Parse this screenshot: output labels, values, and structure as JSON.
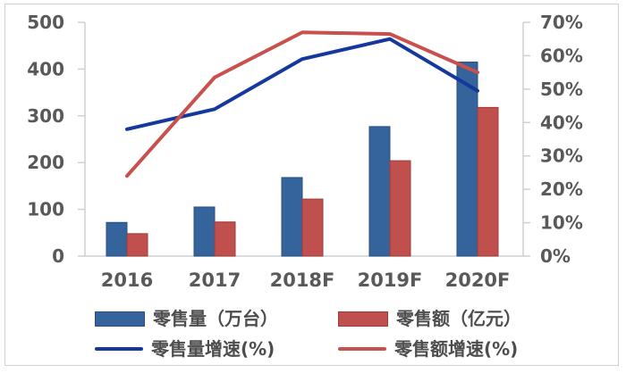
{
  "chart_data": {
    "type": "combo-bar-line",
    "title": "",
    "categories": [
      "2016",
      "2017",
      "2018F",
      "2019F",
      "2020F"
    ],
    "left_axis": {
      "min": 0,
      "max": 500,
      "tick_values": [
        0,
        100,
        200,
        300,
        400,
        500
      ],
      "tick_labels": [
        "0",
        "100",
        "200",
        "300",
        "400",
        "500"
      ]
    },
    "right_axis": {
      "min": 0,
      "max": 70,
      "tick_values": [
        0,
        10,
        20,
        30,
        40,
        50,
        60,
        70
      ],
      "tick_labels": [
        "0%",
        "10%",
        "20%",
        "30%",
        "40%",
        "50%",
        "60%",
        "70%"
      ]
    },
    "series": [
      {
        "key": "retail-volume-bars",
        "name": "零售量（万台）",
        "type": "bar",
        "axis": "left",
        "color": "#35639b",
        "border_color": "#2a4f7e",
        "values": [
          72,
          105,
          168,
          277,
          415
        ]
      },
      {
        "key": "retail-value-bars",
        "name": "零售额（亿元）",
        "type": "bar",
        "axis": "left",
        "color": "#c0504d",
        "border_color": "#9c3c3a",
        "values": [
          48,
          73,
          122,
          204,
          318
        ]
      },
      {
        "key": "retail-volume-growth-line",
        "name": "零售量增速(%)",
        "type": "line",
        "axis": "right",
        "color": "#14389c",
        "values": [
          38,
          44,
          59,
          65,
          49.5
        ]
      },
      {
        "key": "retail-value-growth-line",
        "name": "零售额增速(%)",
        "type": "line",
        "axis": "right",
        "color": "#c8504d",
        "values": [
          24,
          53.5,
          67,
          66.5,
          55
        ]
      }
    ],
    "legend_position": "bottom",
    "grid": false
  },
  "styles": {
    "background": "#ffffff",
    "axis_line_color": "#cdd0d4",
    "axis_text_color": "#595959",
    "legend_text_color": "#4d4d4d",
    "frame_border_color": "#cdd0d4"
  }
}
